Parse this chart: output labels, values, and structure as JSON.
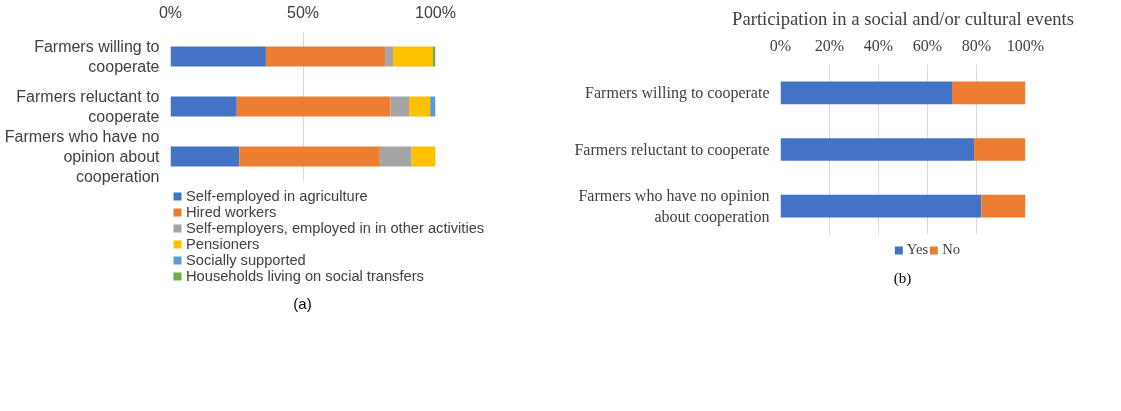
{
  "chart_data": [
    {
      "type": "bar",
      "orientation": "horizontal",
      "stacked": true,
      "categories": [
        "Farmers willing to cooperate",
        "Farmers reluctant to cooperate",
        "Farmers who have no opinion about cooperation"
      ],
      "series": [
        {
          "name": "Self-employed in agriculture",
          "color": "#4472c4",
          "values": [
            36,
            25,
            26
          ]
        },
        {
          "name": "Hired workers",
          "color": "#ed7d31",
          "values": [
            45,
            58,
            53
          ]
        },
        {
          "name": "Self-employers, employed in in other activities",
          "color": "#a5a5a5",
          "values": [
            3,
            7,
            12
          ]
        },
        {
          "name": "Pensioners",
          "color": "#ffc000",
          "values": [
            15,
            8,
            9
          ]
        },
        {
          "name": "Socially supported",
          "color": "#5b9bd5",
          "values": [
            0,
            2,
            0
          ]
        },
        {
          "name": "Households living on social transfers",
          "color": "#70ad47",
          "values": [
            1,
            0,
            0
          ]
        }
      ],
      "xlim": [
        0,
        100
      ],
      "xticks": [
        {
          "value": 0,
          "label": "0%"
        },
        {
          "value": 50,
          "label": "50%"
        },
        {
          "value": 100,
          "label": "100%"
        }
      ],
      "grid": "x",
      "legend": "bottom",
      "annotations": [
        "(a)"
      ]
    },
    {
      "type": "bar",
      "orientation": "horizontal",
      "stacked": true,
      "title": "Participation in a social and/or cultural events",
      "categories": [
        "Farmers willing to cooperate",
        "Farmers reluctant to cooperate",
        "Farmers who have no opinion about cooperation"
      ],
      "series": [
        {
          "name": "Yes",
          "color": "#4472c4",
          "values": [
            70,
            79,
            82
          ]
        },
        {
          "name": "No",
          "color": "#ed7d31",
          "values": [
            30,
            21,
            18
          ]
        }
      ],
      "xlim": [
        0,
        100
      ],
      "xticks": [
        {
          "value": 0,
          "label": "0%"
        },
        {
          "value": 20,
          "label": "20%"
        },
        {
          "value": 40,
          "label": "40%"
        },
        {
          "value": 60,
          "label": "60%"
        },
        {
          "value": 80,
          "label": "80%"
        },
        {
          "value": 100,
          "label": "100%"
        }
      ],
      "grid": "x",
      "legend": "bottom",
      "annotations": [
        "(b)"
      ]
    }
  ]
}
